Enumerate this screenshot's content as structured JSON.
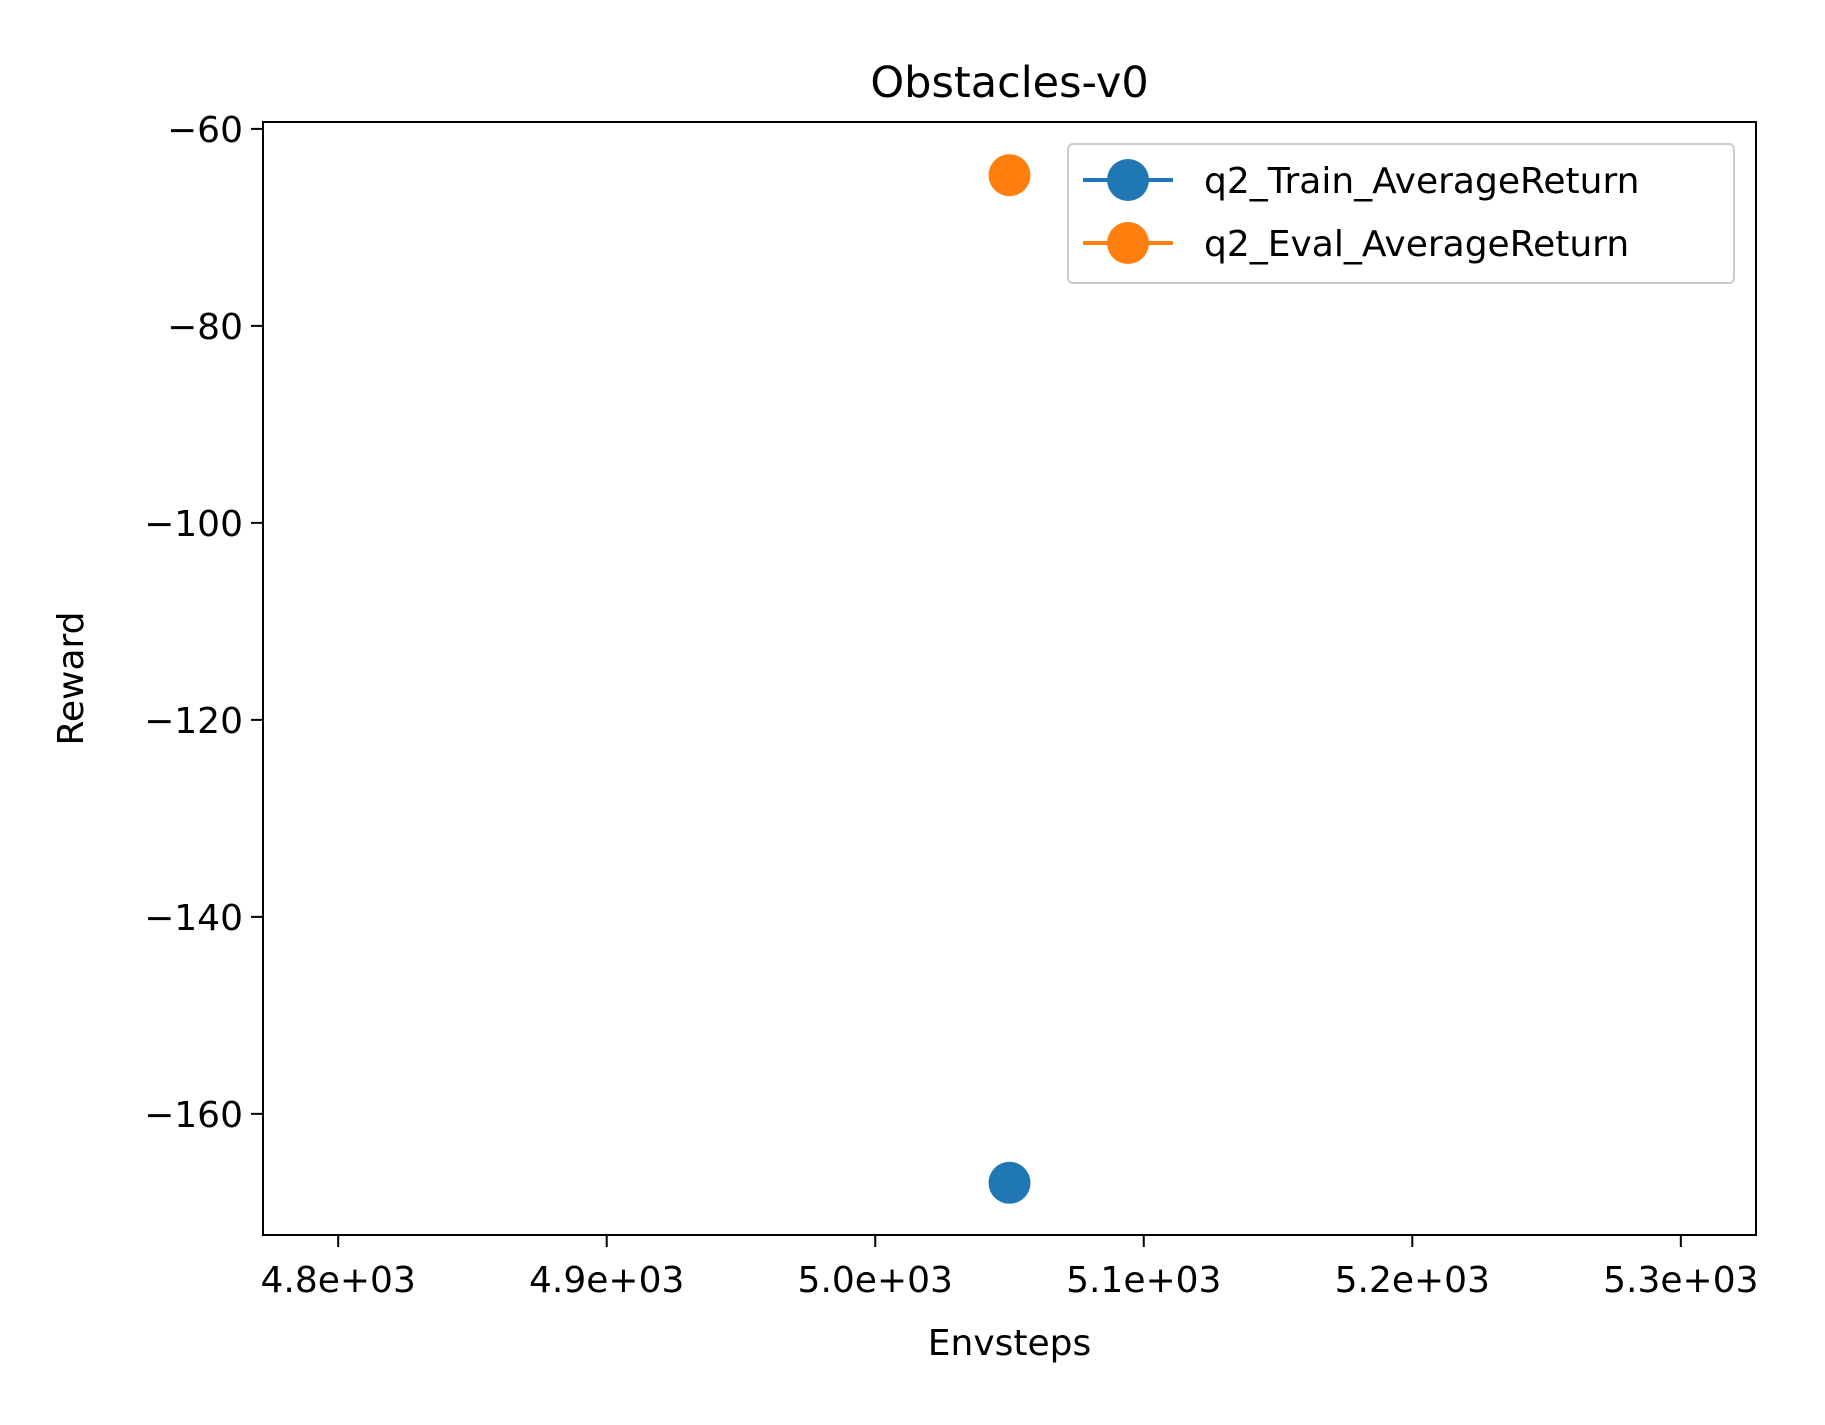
{
  "chart_data": {
    "type": "scatter",
    "title": "Obstacles-v0",
    "xlabel": "Envsteps",
    "ylabel": "Reward",
    "xlim": [
      4772,
      5328
    ],
    "ylim": [
      -172.3,
      -59.3
    ],
    "x_ticks": [
      {
        "value": 4800,
        "label": "4.8e+03"
      },
      {
        "value": 4900,
        "label": "4.9e+03"
      },
      {
        "value": 5000,
        "label": "5.0e+03"
      },
      {
        "value": 5100,
        "label": "5.1e+03"
      },
      {
        "value": 5200,
        "label": "5.2e+03"
      },
      {
        "value": 5300,
        "label": "5.3e+03"
      }
    ],
    "y_ticks": [
      {
        "value": -60,
        "label": "−60"
      },
      {
        "value": -80,
        "label": "−80"
      },
      {
        "value": -100,
        "label": "−100"
      },
      {
        "value": -120,
        "label": "−120"
      },
      {
        "value": -140,
        "label": "−140"
      },
      {
        "value": -160,
        "label": "−160"
      }
    ],
    "grid": false,
    "legend_position": "top-right",
    "series": [
      {
        "name": "q2_Train_AverageReturn",
        "color": "#1f77b4",
        "points": [
          {
            "x": 5050,
            "y": -167
          }
        ]
      },
      {
        "name": "q2_Eval_AverageReturn",
        "color": "#ff7f0e",
        "points": [
          {
            "x": 5050,
            "y": -64.7
          }
        ]
      }
    ]
  }
}
